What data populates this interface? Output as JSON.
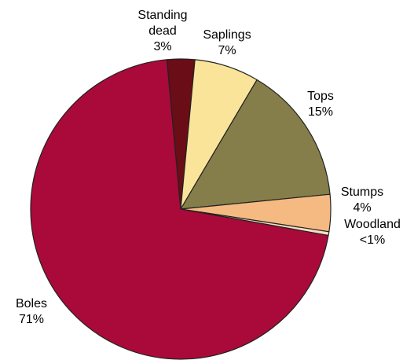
{
  "chart_data": {
    "type": "pie",
    "title": "",
    "start_angle_deg": -95.3,
    "direction": "clockwise",
    "slice_edge_color": "#222222",
    "slices": [
      {
        "name": "Standing dead",
        "value": 3,
        "display_value": "3%",
        "color": "#6a0d17"
      },
      {
        "name": "Saplings",
        "value": 7,
        "display_value": "7%",
        "color": "#f9e49a"
      },
      {
        "name": "Tops",
        "value": 15,
        "display_value": "15%",
        "color": "#857e4a"
      },
      {
        "name": "Stumps",
        "value": 4,
        "display_value": "4%",
        "color": "#f5b982"
      },
      {
        "name": "Woodland",
        "value": 0.4,
        "display_value": "<1%",
        "color": "#f7dcc0"
      },
      {
        "name": "Boles",
        "value": 71,
        "display_value": "71%",
        "color": "#a90a3a"
      }
    ]
  }
}
